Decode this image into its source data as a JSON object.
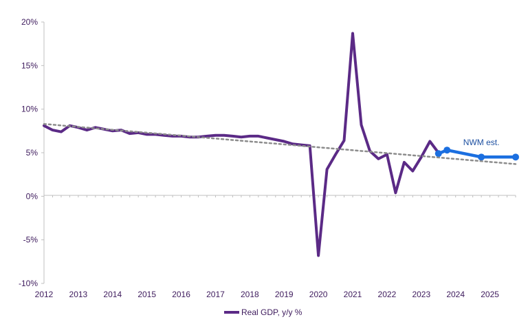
{
  "chart_data": {
    "type": "line",
    "title": "",
    "xlabel": "",
    "ylabel": "",
    "xlim": [
      2012,
      2025.75
    ],
    "ylim": [
      -10,
      20
    ],
    "y_ticks": [
      20,
      15,
      10,
      5,
      0,
      -5,
      -10
    ],
    "y_tick_labels": [
      "20%",
      "15%",
      "10%",
      "5%",
      "0%",
      "-5%",
      "-10%"
    ],
    "x_ticks": [
      2012,
      2013,
      2014,
      2015,
      2016,
      2017,
      2018,
      2019,
      2020,
      2021,
      2022,
      2023,
      2024,
      2025
    ],
    "x_tick_labels": [
      "2012",
      "2013",
      "2014",
      "2015",
      "2016",
      "2017",
      "2018",
      "2019",
      "2020",
      "2021",
      "2022",
      "2023",
      "2024",
      "2025"
    ],
    "grid": false,
    "legend_position": "bottom-center",
    "series": [
      {
        "name": "Real GDP, y/y %",
        "color": "#5b2a86",
        "style": "solid",
        "in_legend": true,
        "x": [
          2012,
          2012.25,
          2012.5,
          2012.75,
          2013,
          2013.25,
          2013.5,
          2013.75,
          2014,
          2014.25,
          2014.5,
          2014.75,
          2015,
          2015.25,
          2015.5,
          2015.75,
          2016,
          2016.25,
          2016.5,
          2016.75,
          2017,
          2017.25,
          2017.5,
          2017.75,
          2018,
          2018.25,
          2018.5,
          2018.75,
          2019,
          2019.25,
          2019.5,
          2019.75,
          2020,
          2020.25,
          2020.5,
          2020.75,
          2021,
          2021.25,
          2021.5,
          2021.75,
          2022,
          2022.25,
          2022.5,
          2022.75,
          2023,
          2023.25,
          2023.5
        ],
        "values": [
          8.1,
          7.6,
          7.4,
          8.1,
          7.9,
          7.6,
          7.9,
          7.7,
          7.5,
          7.6,
          7.2,
          7.3,
          7.1,
          7.1,
          7.0,
          6.9,
          6.9,
          6.8,
          6.8,
          6.9,
          7.0,
          7.0,
          6.9,
          6.8,
          6.9,
          6.9,
          6.7,
          6.5,
          6.3,
          6.0,
          5.9,
          5.8,
          -6.8,
          3.1,
          4.8,
          6.4,
          18.7,
          8.2,
          5.2,
          4.3,
          4.8,
          0.4,
          3.9,
          2.9,
          4.5,
          6.3,
          5.0
        ]
      },
      {
        "name": "NWM est.",
        "color": "#1b6fe0",
        "style": "solid-markers",
        "in_legend": false,
        "x": [
          2023.5,
          2023.75,
          2024.75,
          2025.75
        ],
        "values": [
          4.9,
          5.3,
          4.5,
          4.5
        ]
      },
      {
        "name": "Trend",
        "color": "#8c8c8c",
        "style": "dotted",
        "in_legend": false,
        "x": [
          2012,
          2025.75
        ],
        "values": [
          8.3,
          3.7
        ]
      }
    ],
    "annotations": [
      {
        "text": "NWM est.",
        "x": 2024.75,
        "y": 6.2
      }
    ]
  }
}
